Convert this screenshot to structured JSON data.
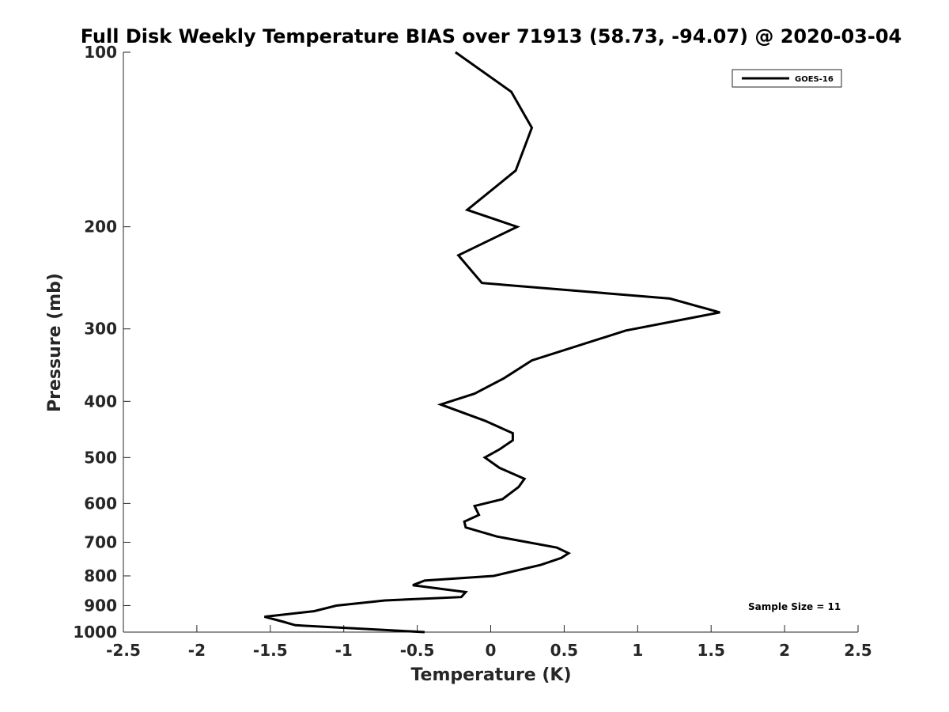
{
  "chart_data": {
    "type": "line",
    "title": "Full Disk Weekly Temperature BIAS over 71913 (58.73, -94.07) @ 2020-03-04",
    "xlabel": "Temperature (K)",
    "ylabel": "Pressure (mb)",
    "xlim": [
      -2.5,
      2.5
    ],
    "ylim": [
      100,
      1000
    ],
    "y_scale": "log",
    "y_reversed": true,
    "x_ticks": [
      -2.5,
      -2,
      -1.5,
      -1,
      -0.5,
      0,
      0.5,
      1,
      1.5,
      2,
      2.5
    ],
    "x_tick_labels": [
      "-2.5",
      "-2",
      "-1.5",
      "-1",
      "-0.5",
      "0",
      "0.5",
      "1",
      "1.5",
      "2",
      "2.5"
    ],
    "y_ticks": [
      100,
      200,
      300,
      400,
      500,
      600,
      700,
      800,
      900,
      1000
    ],
    "y_tick_labels": [
      "100",
      "200",
      "300",
      "400",
      "500",
      "600",
      "700",
      "800",
      "900",
      "1000"
    ],
    "grid": false,
    "legend_position": "top-right",
    "annotation": "Sample Size = 11",
    "line_color": "#000000",
    "series": [
      {
        "name": "GOES-16",
        "points": [
          [
            -0.24,
            100
          ],
          [
            0.14,
            117
          ],
          [
            0.28,
            135
          ],
          [
            0.17,
            160
          ],
          [
            -0.16,
            187
          ],
          [
            0.18,
            200
          ],
          [
            -0.22,
            224
          ],
          [
            -0.06,
            250
          ],
          [
            1.22,
            266
          ],
          [
            1.56,
            281
          ],
          [
            0.92,
            302
          ],
          [
            0.28,
            340
          ],
          [
            0.09,
            365
          ],
          [
            -0.11,
            388
          ],
          [
            -0.34,
            405
          ],
          [
            -0.04,
            432
          ],
          [
            0.15,
            454
          ],
          [
            0.15,
            467
          ],
          [
            0.06,
            484
          ],
          [
            -0.04,
            500
          ],
          [
            0.06,
            521
          ],
          [
            0.23,
            544
          ],
          [
            0.19,
            562
          ],
          [
            0.08,
            590
          ],
          [
            -0.11,
            606
          ],
          [
            -0.08,
            628
          ],
          [
            -0.18,
            645
          ],
          [
            -0.17,
            660
          ],
          [
            0.04,
            684
          ],
          [
            0.45,
            715
          ],
          [
            0.53,
            731
          ],
          [
            0.48,
            745
          ],
          [
            0.34,
            766
          ],
          [
            0.02,
            800
          ],
          [
            -0.45,
            815
          ],
          [
            -0.53,
            830
          ],
          [
            -0.17,
            853
          ],
          [
            -0.2,
            870
          ],
          [
            -0.72,
            882
          ],
          [
            -1.05,
            900
          ],
          [
            -1.2,
            920
          ],
          [
            -1.54,
            941
          ],
          [
            -1.41,
            960
          ],
          [
            -1.33,
            973
          ],
          [
            -0.45,
            1000
          ]
        ]
      }
    ]
  }
}
